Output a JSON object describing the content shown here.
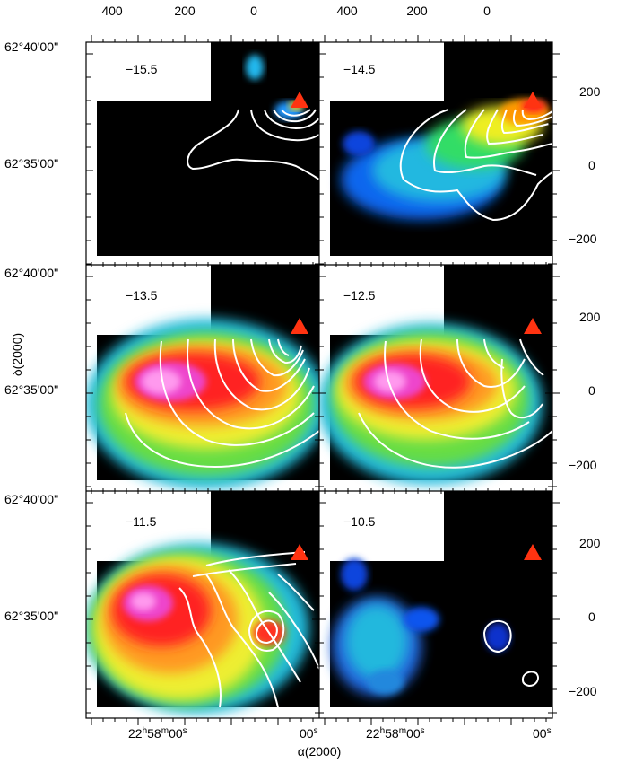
{
  "figure": {
    "panel_labels": [
      "−15.5",
      "−14.5",
      "−13.5",
      "−12.5",
      "−11.5",
      "−10.5"
    ],
    "top_offset_ticks": [
      "400",
      "200",
      "0"
    ],
    "right_offset_ticks": [
      "200",
      "0",
      "−200"
    ],
    "dec_ticks": [
      "62°40'00''",
      "62°35'00''"
    ],
    "ra_ticks": [
      "22h58m00s",
      "00s"
    ],
    "ra_tick_main": "22",
    "ra_tick_h": "h",
    "ra_tick_m_val": "58",
    "ra_tick_m": "m",
    "ra_tick_s_val": "00",
    "ra_tick_s": "s",
    "x_axis_label": "α(2000)",
    "y_axis_label": "δ(2000)",
    "marker_color": "#ff3311"
  }
}
